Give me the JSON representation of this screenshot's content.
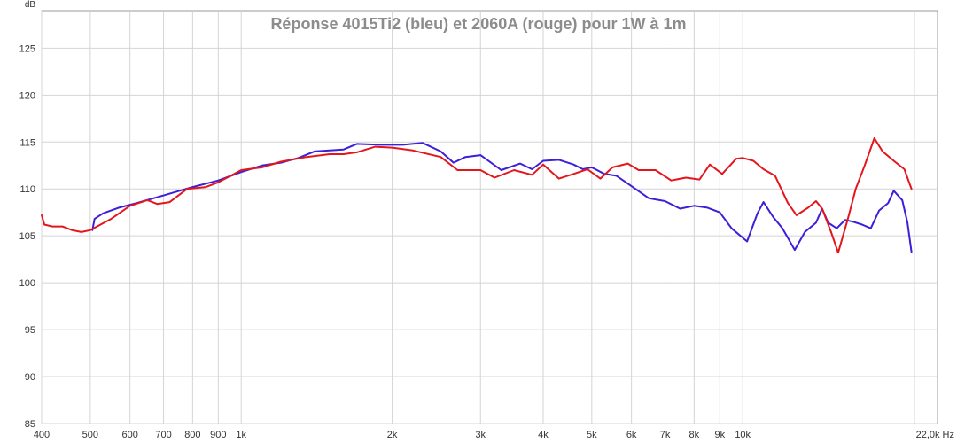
{
  "chart_data": {
    "type": "line",
    "title": "Réponse 4015Ti2 (bleu) et 2060A (rouge) pour 1W à 1m",
    "ylabel": "dB",
    "x_unit_label": "22,0k Hz",
    "x_scale": "log",
    "xlim": [
      400,
      22000
    ],
    "ylim": [
      85,
      129
    ],
    "grid": true,
    "x_ticks": [
      {
        "value": 400,
        "label": "400"
      },
      {
        "value": 500,
        "label": "500"
      },
      {
        "value": 600,
        "label": "600"
      },
      {
        "value": 700,
        "label": "700"
      },
      {
        "value": 800,
        "label": "800"
      },
      {
        "value": 900,
        "label": "900"
      },
      {
        "value": 1000,
        "label": "1k"
      },
      {
        "value": 2000,
        "label": "2k"
      },
      {
        "value": 3000,
        "label": "3k"
      },
      {
        "value": 4000,
        "label": "4k"
      },
      {
        "value": 5000,
        "label": "5k"
      },
      {
        "value": 6000,
        "label": "6k"
      },
      {
        "value": 7000,
        "label": "7k"
      },
      {
        "value": 8000,
        "label": "8k"
      },
      {
        "value": 9000,
        "label": "9k"
      },
      {
        "value": 10000,
        "label": "10k"
      }
    ],
    "y_ticks": [
      {
        "value": 85,
        "label": "85"
      },
      {
        "value": 90,
        "label": "90"
      },
      {
        "value": 95,
        "label": "95"
      },
      {
        "value": 100,
        "label": "100"
      },
      {
        "value": 105,
        "label": "105"
      },
      {
        "value": 110,
        "label": "110"
      },
      {
        "value": 115,
        "label": "115"
      },
      {
        "value": 120,
        "label": "120"
      },
      {
        "value": 125,
        "label": "125"
      }
    ],
    "series": [
      {
        "color": "#3b1fd9",
        "points": [
          [
            505,
            105.6
          ],
          [
            510,
            106.8
          ],
          [
            530,
            107.4
          ],
          [
            570,
            108.0
          ],
          [
            620,
            108.5
          ],
          [
            700,
            109.3
          ],
          [
            800,
            110.2
          ],
          [
            900,
            110.9
          ],
          [
            1000,
            111.8
          ],
          [
            1100,
            112.5
          ],
          [
            1200,
            112.8
          ],
          [
            1300,
            113.3
          ],
          [
            1400,
            114.0
          ],
          [
            1500,
            114.1
          ],
          [
            1600,
            114.2
          ],
          [
            1700,
            114.8
          ],
          [
            1900,
            114.7
          ],
          [
            2100,
            114.7
          ],
          [
            2300,
            114.9
          ],
          [
            2500,
            114.0
          ],
          [
            2650,
            112.8
          ],
          [
            2800,
            113.4
          ],
          [
            3000,
            113.6
          ],
          [
            3300,
            112.0
          ],
          [
            3600,
            112.7
          ],
          [
            3800,
            112.1
          ],
          [
            4000,
            113.0
          ],
          [
            4300,
            113.1
          ],
          [
            4600,
            112.6
          ],
          [
            4800,
            112.1
          ],
          [
            5000,
            112.3
          ],
          [
            5300,
            111.6
          ],
          [
            5600,
            111.4
          ],
          [
            6000,
            110.3
          ],
          [
            6500,
            109.0
          ],
          [
            7000,
            108.7
          ],
          [
            7500,
            107.9
          ],
          [
            8000,
            108.2
          ],
          [
            8500,
            108.0
          ],
          [
            9000,
            107.5
          ],
          [
            9500,
            105.8
          ],
          [
            10200,
            104.4
          ],
          [
            10700,
            107.4
          ],
          [
            11000,
            108.6
          ],
          [
            11500,
            107.0
          ],
          [
            12000,
            105.8
          ],
          [
            12700,
            103.5
          ],
          [
            13300,
            105.4
          ],
          [
            14000,
            106.4
          ],
          [
            14400,
            107.9
          ],
          [
            14800,
            106.4
          ],
          [
            15400,
            105.8
          ],
          [
            16000,
            106.7
          ],
          [
            16600,
            106.5
          ],
          [
            17300,
            106.2
          ],
          [
            18000,
            105.8
          ],
          [
            18700,
            107.7
          ],
          [
            19500,
            108.5
          ],
          [
            20000,
            109.8
          ],
          [
            20800,
            108.8
          ],
          [
            21300,
            106.4
          ],
          [
            21700,
            103.3
          ]
        ]
      },
      {
        "color": "#e3161c",
        "points": [
          [
            400,
            107.2
          ],
          [
            405,
            106.2
          ],
          [
            420,
            106.0
          ],
          [
            440,
            106.0
          ],
          [
            460,
            105.6
          ],
          [
            480,
            105.4
          ],
          [
            500,
            105.6
          ],
          [
            550,
            106.8
          ],
          [
            600,
            108.2
          ],
          [
            650,
            108.8
          ],
          [
            680,
            108.4
          ],
          [
            720,
            108.6
          ],
          [
            780,
            110.0
          ],
          [
            850,
            110.2
          ],
          [
            900,
            110.7
          ],
          [
            1000,
            112.0
          ],
          [
            1100,
            112.3
          ],
          [
            1200,
            112.9
          ],
          [
            1350,
            113.4
          ],
          [
            1500,
            113.7
          ],
          [
            1600,
            113.7
          ],
          [
            1700,
            113.9
          ],
          [
            1850,
            114.5
          ],
          [
            2000,
            114.4
          ],
          [
            2200,
            114.1
          ],
          [
            2500,
            113.4
          ],
          [
            2700,
            112.0
          ],
          [
            3000,
            112.0
          ],
          [
            3200,
            111.2
          ],
          [
            3500,
            112.0
          ],
          [
            3800,
            111.5
          ],
          [
            4000,
            112.6
          ],
          [
            4300,
            111.1
          ],
          [
            4600,
            111.6
          ],
          [
            4900,
            112.1
          ],
          [
            5200,
            111.1
          ],
          [
            5500,
            112.3
          ],
          [
            5900,
            112.7
          ],
          [
            6200,
            112.0
          ],
          [
            6700,
            112.0
          ],
          [
            7200,
            110.9
          ],
          [
            7700,
            111.2
          ],
          [
            8200,
            111.0
          ],
          [
            8600,
            112.6
          ],
          [
            9100,
            111.6
          ],
          [
            9700,
            113.2
          ],
          [
            10000,
            113.3
          ],
          [
            10500,
            113.0
          ],
          [
            11000,
            112.1
          ],
          [
            11600,
            111.4
          ],
          [
            12300,
            108.5
          ],
          [
            12800,
            107.2
          ],
          [
            13500,
            108.0
          ],
          [
            14000,
            108.7
          ],
          [
            14400,
            107.9
          ],
          [
            15000,
            105.4
          ],
          [
            15500,
            103.2
          ],
          [
            16200,
            106.8
          ],
          [
            16800,
            110.0
          ],
          [
            17500,
            112.5
          ],
          [
            18300,
            115.4
          ],
          [
            19000,
            114.0
          ],
          [
            20000,
            113.0
          ],
          [
            21000,
            112.1
          ],
          [
            21700,
            110.0
          ]
        ]
      }
    ]
  }
}
